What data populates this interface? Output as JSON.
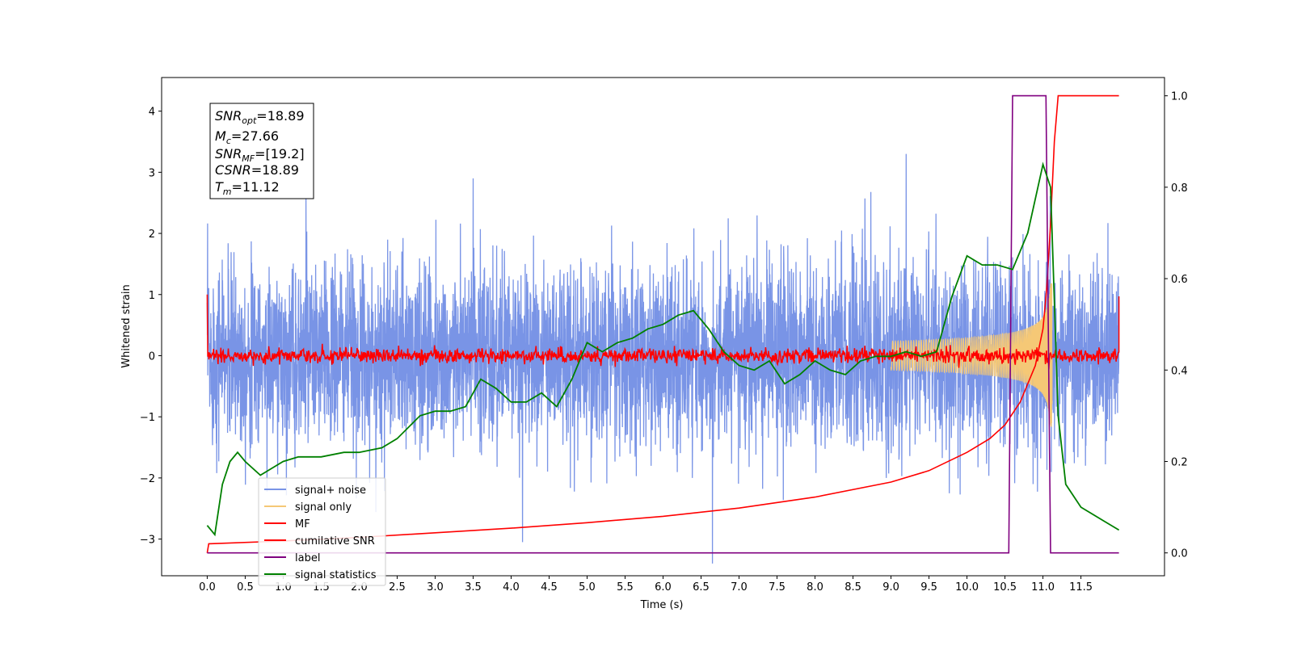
{
  "chart_data": {
    "type": "line",
    "xlabel": "Time (s)",
    "ylabel": "Whitened strain",
    "xlim": [
      -0.6,
      12.6
    ],
    "ylim": [
      -3.6,
      4.55
    ],
    "y2lim": [
      -0.05,
      1.04
    ],
    "x_ticks": [
      "0.0",
      "0.5",
      "1.0",
      "1.5",
      "2.0",
      "2.5",
      "3.0",
      "3.5",
      "4.0",
      "4.5",
      "5.0",
      "5.5",
      "6.0",
      "6.5",
      "7.0",
      "7.5",
      "8.0",
      "8.5",
      "9.0",
      "9.5",
      "10.0",
      "10.5",
      "11.0",
      "11.5"
    ],
    "y_ticks": [
      "4",
      "3",
      "2",
      "1",
      "0",
      "−1",
      "−2",
      "−3"
    ],
    "y2_ticks": [
      "1.0",
      "0.8",
      "0.6",
      "0.4",
      "0.2",
      "0.0"
    ],
    "annotation": {
      "snr_opt": {
        "main": "SNR",
        "sub": "opt",
        "value": "=18.89"
      },
      "mc": {
        "main": "M",
        "sub": "c",
        "value": "=27.66"
      },
      "snr_mf": {
        "main": "SNR",
        "sub": "MF",
        "value": "=[19.2]"
      },
      "csnr": {
        "main": "CSNR",
        "value": "=18.89"
      },
      "tm": {
        "main": "T",
        "sub": "m",
        "value": "=11.12"
      }
    },
    "legend_position": "lower-left",
    "series": [
      {
        "name": "signal+ noise",
        "color": "#7994e6",
        "axis": "left",
        "description_type": "noise",
        "x_range": [
          0,
          12.0
        ],
        "std": 0.72,
        "peaks": [
          [
            9.2,
            3.3
          ],
          [
            6.65,
            -3.4
          ],
          [
            1.3,
            2.85
          ],
          [
            3.5,
            2.9
          ],
          [
            4.15,
            2.55
          ],
          [
            4.15,
            -3.05
          ]
        ]
      },
      {
        "name": "signal only",
        "color": "#f5c876",
        "axis": "left",
        "description_type": "chirp",
        "merger_time": 11.12,
        "peak_amplitude": 1.2
      },
      {
        "name": "MF",
        "color": "#ff0000",
        "axis": "left",
        "description_type": "flat",
        "x_range": [
          0,
          12.0
        ],
        "level": 0.0,
        "jitter": 0.06,
        "edges": [
          [
            0.0,
            1.0
          ],
          [
            12.0,
            0.97
          ]
        ]
      },
      {
        "name": "cumilative SNR",
        "color": "#ff0000",
        "axis": "right",
        "x": [
          0.0,
          0.02,
          1.0,
          2.0,
          3.0,
          4.0,
          5.0,
          6.0,
          7.0,
          8.0,
          9.0,
          9.5,
          10.0,
          10.3,
          10.5,
          10.7,
          10.9,
          11.0,
          11.05,
          11.1,
          11.15,
          11.2,
          12.0
        ],
        "y": [
          0.0,
          0.02,
          0.026,
          0.034,
          0.044,
          0.054,
          0.066,
          0.08,
          0.098,
          0.122,
          0.155,
          0.18,
          0.22,
          0.25,
          0.28,
          0.33,
          0.41,
          0.49,
          0.58,
          0.72,
          0.9,
          1.0,
          1.0
        ]
      },
      {
        "name": "label",
        "color": "#800080",
        "axis": "right",
        "x": [
          0.0,
          10.55,
          10.6,
          11.04,
          11.1,
          12.0
        ],
        "y": [
          0.0,
          0.0,
          1.0,
          1.0,
          0.0,
          0.0
        ]
      },
      {
        "name": "signal statistics",
        "color": "#008000",
        "axis": "right",
        "x": [
          0.0,
          0.1,
          0.2,
          0.3,
          0.4,
          0.5,
          0.7,
          0.9,
          1.0,
          1.2,
          1.5,
          1.8,
          2.0,
          2.3,
          2.5,
          2.8,
          3.0,
          3.2,
          3.4,
          3.6,
          3.8,
          4.0,
          4.2,
          4.4,
          4.6,
          4.8,
          5.0,
          5.2,
          5.4,
          5.6,
          5.8,
          6.0,
          6.2,
          6.4,
          6.6,
          6.8,
          7.0,
          7.2,
          7.4,
          7.6,
          7.8,
          8.0,
          8.2,
          8.4,
          8.6,
          8.8,
          9.0,
          9.2,
          9.4,
          9.6,
          9.8,
          10.0,
          10.2,
          10.4,
          10.6,
          10.8,
          11.0,
          11.1,
          11.2,
          11.3,
          11.5,
          11.8,
          12.0
        ],
        "y": [
          0.06,
          0.04,
          0.15,
          0.2,
          0.22,
          0.2,
          0.17,
          0.19,
          0.2,
          0.21,
          0.21,
          0.22,
          0.22,
          0.23,
          0.25,
          0.3,
          0.31,
          0.31,
          0.32,
          0.38,
          0.36,
          0.33,
          0.33,
          0.35,
          0.32,
          0.38,
          0.46,
          0.44,
          0.46,
          0.47,
          0.49,
          0.5,
          0.52,
          0.53,
          0.49,
          0.44,
          0.41,
          0.4,
          0.42,
          0.37,
          0.39,
          0.42,
          0.4,
          0.39,
          0.42,
          0.43,
          0.43,
          0.44,
          0.43,
          0.44,
          0.56,
          0.65,
          0.63,
          0.63,
          0.62,
          0.7,
          0.85,
          0.8,
          0.3,
          0.15,
          0.1,
          0.07,
          0.05
        ]
      }
    ]
  }
}
